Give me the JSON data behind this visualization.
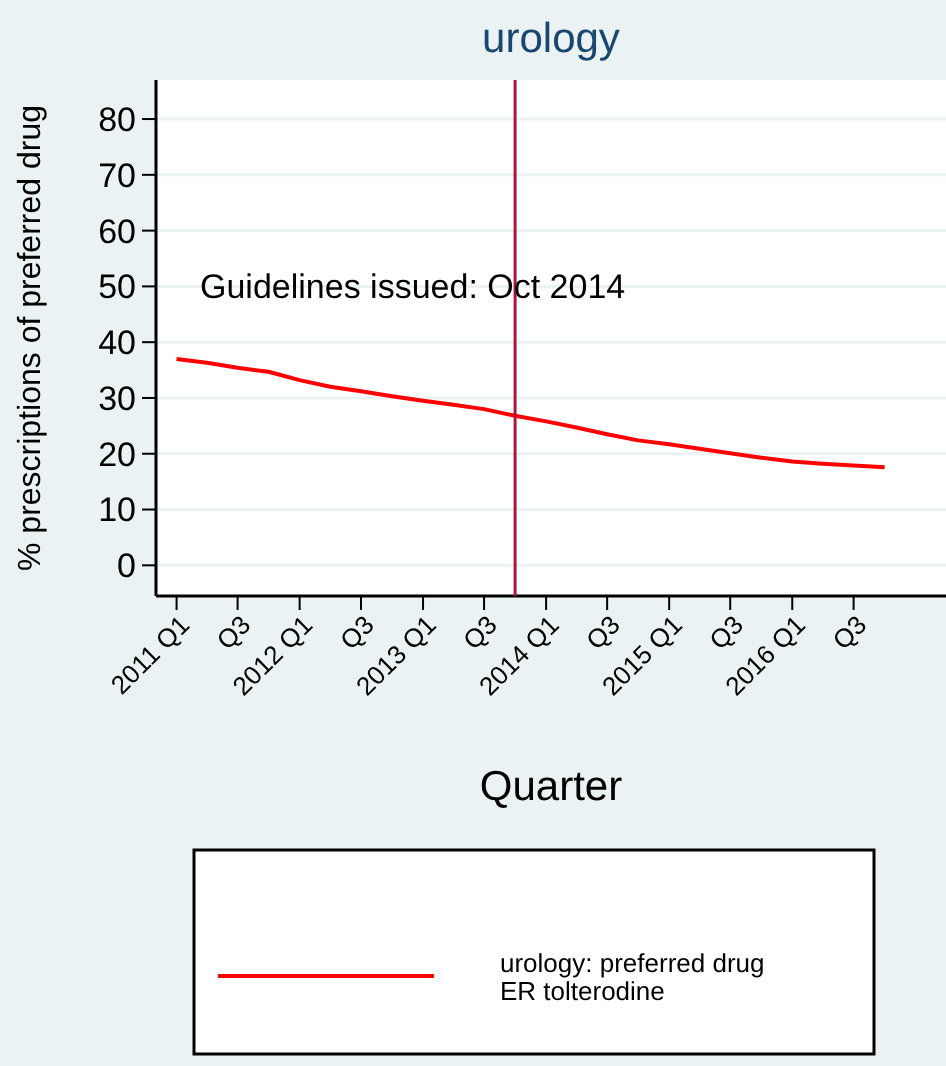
{
  "chart_data": {
    "type": "line",
    "title": "urology",
    "xlabel": "Quarter",
    "ylabel": "% prescriptions of preferred drug",
    "x": [
      "2011-01",
      "2011-04",
      "2011-07",
      "2011-10",
      "2012-01",
      "2012-04",
      "2012-07",
      "2012-10",
      "2013-01",
      "2013-04",
      "2013-07",
      "2013-10",
      "2014-01",
      "2014-04",
      "2014-07",
      "2014-10",
      "2015-01",
      "2015-04",
      "2015-07",
      "2015-10",
      "2016-01",
      "2016-04",
      "2016-07",
      "2016-10"
    ],
    "series": [
      {
        "name": "urology: preferred drug\nER tolterodine",
        "color": "#ff0000",
        "values": [
          37.0,
          36.3,
          35.4,
          34.7,
          33.2,
          32.0,
          31.2,
          30.3,
          29.5,
          28.8,
          28.0,
          26.8,
          25.8,
          24.7,
          23.5,
          22.4,
          21.7,
          20.9,
          20.1,
          19.3,
          18.6,
          18.2,
          17.9,
          17.6
        ]
      }
    ],
    "xlim": [
      "2010-11",
      "2017-04"
    ],
    "xticks": [
      {
        "value": "2011-01",
        "label": "2011 Q1"
      },
      {
        "value": "2011-07",
        "label": "Q3"
      },
      {
        "value": "2012-01",
        "label": "2012 Q1"
      },
      {
        "value": "2012-07",
        "label": "Q3"
      },
      {
        "value": "2013-01",
        "label": "2013 Q1"
      },
      {
        "value": "2013-07",
        "label": "Q3"
      },
      {
        "value": "2014-01",
        "label": "2014 Q1"
      },
      {
        "value": "2014-07",
        "label": "Q3"
      },
      {
        "value": "2015-01",
        "label": "2015 Q1"
      },
      {
        "value": "2015-07",
        "label": "Q3"
      },
      {
        "value": "2016-01",
        "label": "2016 Q1"
      },
      {
        "value": "2016-07",
        "label": "Q3"
      }
    ],
    "ylim": [
      -5.5,
      87
    ],
    "yticks": [
      0,
      10,
      20,
      30,
      40,
      50,
      60,
      70,
      80
    ],
    "grid": "y",
    "legend": "bottom",
    "line_style": "solid",
    "marker": "none",
    "ref_lines": [
      {
        "axis": "x",
        "value": "2013-10",
        "label": null,
        "color": "#b0143c"
      }
    ],
    "annotations": [
      "Guidelines issued:  Oct 2014"
    ]
  }
}
